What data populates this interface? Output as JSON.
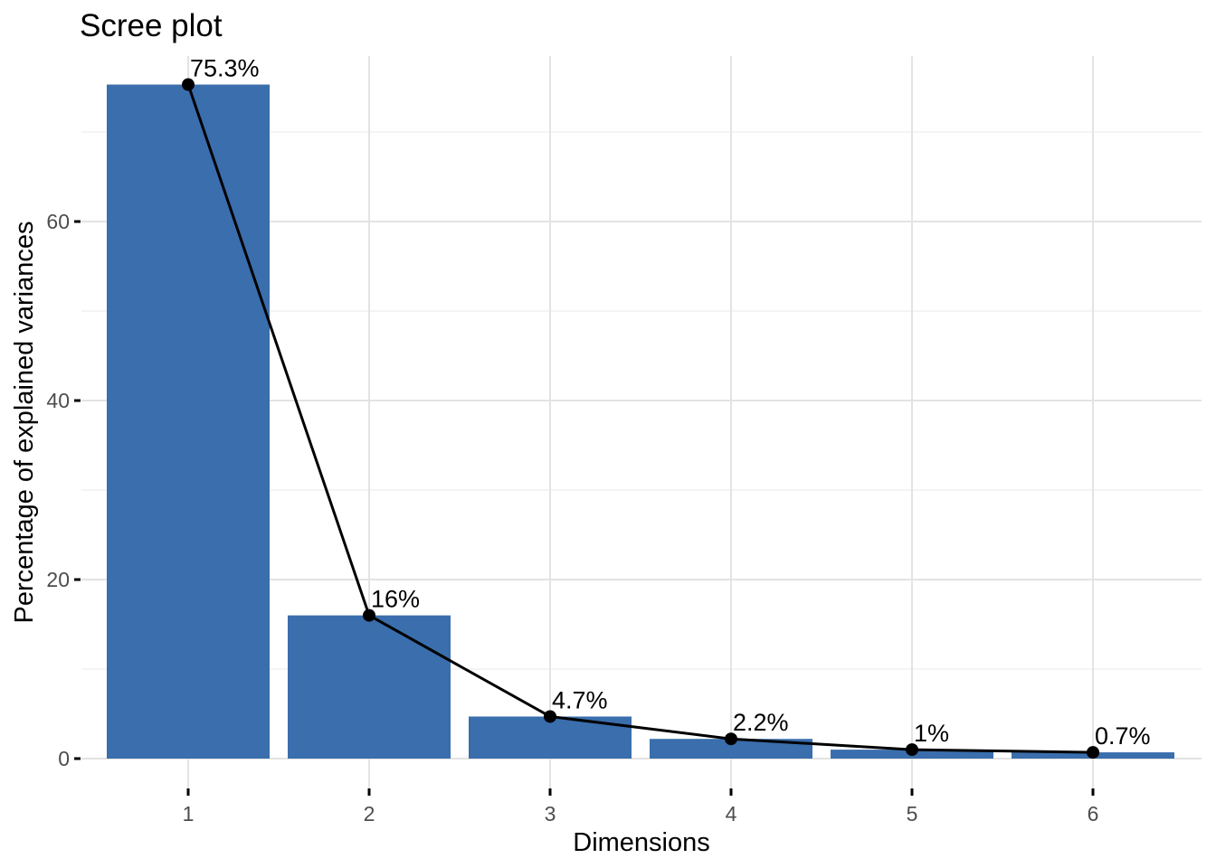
{
  "chart_data": {
    "type": "bar",
    "subtype": "bar-with-line-overlay (scree plot)",
    "title": "Scree plot",
    "xlabel": "Dimensions",
    "ylabel": "Percentage of explained variances",
    "categories": [
      "1",
      "2",
      "3",
      "4",
      "5",
      "6"
    ],
    "values": [
      75.3,
      16,
      4.7,
      2.2,
      1,
      0.7
    ],
    "point_labels": [
      "75.3%",
      "16%",
      "4.7%",
      "2.2%",
      "1%",
      "0.7%"
    ],
    "y_major_ticks": [
      0,
      20,
      40,
      60
    ],
    "y_minor_gridlines": [
      10,
      30,
      50,
      70
    ],
    "ylim": [
      -3.3,
      78.5
    ],
    "legend": "none",
    "grid": true,
    "colors": {
      "bar_fill": "#3a6ead",
      "line": "#000000",
      "point": "#000000",
      "grid_major": "#e3e3e3",
      "grid_minor": "#f0f0f0",
      "tick_mark": "#000000",
      "tick_label": "#4d4d4d",
      "text": "#000000",
      "background": "#ffffff"
    }
  }
}
